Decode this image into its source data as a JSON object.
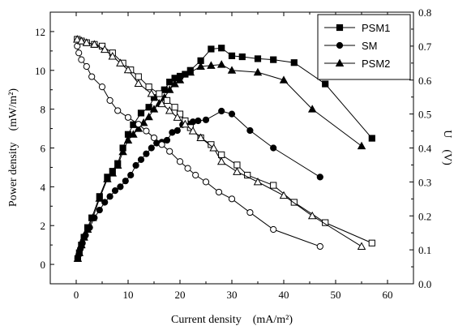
{
  "chart_data": {
    "type": "line",
    "xlabel": "Current density　(mA/m²)",
    "ylabel_left": "Power density　(mW/m²)",
    "ylabel_right": "U　(V)",
    "xlim": [
      -5,
      65
    ],
    "ylim_left": [
      -1,
      13
    ],
    "ylim_right": [
      0.0,
      0.8
    ],
    "x_ticks": [
      "0",
      "10",
      "20",
      "30",
      "40",
      "50",
      "60"
    ],
    "y_left_ticks": [
      "0",
      "2",
      "4",
      "6",
      "8",
      "10",
      "12"
    ],
    "y_right_ticks": [
      "0.0",
      "0.1",
      "0.2",
      "0.3",
      "0.4",
      "0.5",
      "0.6",
      "0.7",
      "0.8"
    ],
    "grid": false,
    "legend_position": "top-right",
    "series": [
      {
        "name": "PSM1",
        "marker": "square",
        "axis": "left",
        "x": [
          0.3,
          0.6,
          1.0,
          1.5,
          2.2,
          3.0,
          4.5,
          6.0,
          7.0,
          8.0,
          9.0,
          10.0,
          11.0,
          12.5,
          14.0,
          15.0,
          17.0,
          18.0,
          19.0,
          20.0,
          21.0,
          22.0,
          24.0,
          26.0,
          28.0,
          30.0,
          32.0,
          35.0,
          38.0,
          42.0,
          48.0,
          57.0
        ],
        "y": [
          0.3,
          0.6,
          1.0,
          1.4,
          1.9,
          2.4,
          3.5,
          4.5,
          4.8,
          5.2,
          6.0,
          6.7,
          7.2,
          7.8,
          8.1,
          8.6,
          9.0,
          9.4,
          9.6,
          9.7,
          9.8,
          10.0,
          10.5,
          11.1,
          11.15,
          10.75,
          10.7,
          10.6,
          10.55,
          10.4,
          9.3,
          6.5
        ]
      },
      {
        "name": "SM",
        "marker": "circle",
        "axis": "left",
        "x": [
          0.3,
          0.5,
          0.8,
          1.2,
          1.8,
          2.6,
          3.5,
          4.5,
          5.5,
          6.5,
          7.5,
          8.5,
          9.5,
          10.5,
          11.5,
          12.5,
          13.5,
          14.5,
          15.5,
          16.5,
          17.5,
          18.5,
          19.5,
          20.5,
          21.5,
          22.5,
          23.5,
          25.0,
          28.0,
          30.0,
          33.5,
          38.0,
          47.0
        ],
        "y": [
          0.3,
          0.5,
          0.8,
          1.1,
          1.5,
          1.9,
          2.4,
          2.8,
          3.2,
          3.5,
          3.8,
          4.0,
          4.3,
          4.6,
          5.1,
          5.4,
          5.7,
          6.0,
          6.25,
          6.3,
          6.4,
          6.8,
          6.9,
          7.2,
          7.25,
          7.35,
          7.4,
          7.45,
          7.9,
          7.75,
          6.9,
          6.0,
          4.5
        ]
      },
      {
        "name": "PSM2",
        "marker": "triangle",
        "axis": "left",
        "x": [
          0.3,
          0.6,
          1.0,
          1.5,
          2.2,
          3.2,
          4.5,
          6.0,
          7.0,
          8.0,
          9.0,
          10.0,
          11.0,
          12.0,
          13.0,
          14.0,
          15.0,
          16.0,
          17.0,
          18.0,
          19.0,
          20.0,
          22.0,
          24.0,
          26.0,
          28.0,
          30.0,
          35.0,
          40.0,
          45.5,
          55.0
        ],
        "y": [
          0.3,
          0.6,
          1.0,
          1.4,
          1.8,
          2.4,
          3.4,
          4.4,
          4.7,
          5.1,
          5.8,
          6.4,
          6.7,
          7.0,
          7.3,
          7.6,
          8.0,
          8.3,
          8.6,
          9.0,
          9.3,
          9.5,
          9.9,
          10.2,
          10.25,
          10.3,
          10.0,
          9.9,
          9.5,
          8.0,
          6.1
        ]
      },
      {
        "name": "",
        "marker": "open-square",
        "axis": "right",
        "x": [
          0.2,
          1.0,
          2.0,
          3.5,
          5.0,
          7.0,
          9.0,
          10.5,
          12.0,
          14.0,
          16.0,
          17.5,
          19.0,
          20.0,
          21.0,
          22.0,
          24.0,
          26.0,
          28.0,
          31.0,
          33.0,
          38.0,
          42.0,
          48.0,
          57.0
        ],
        "y": [
          0.72,
          0.715,
          0.71,
          0.705,
          0.7,
          0.68,
          0.65,
          0.63,
          0.61,
          0.58,
          0.56,
          0.54,
          0.52,
          0.5,
          0.48,
          0.46,
          0.43,
          0.41,
          0.38,
          0.35,
          0.32,
          0.29,
          0.24,
          0.18,
          0.12
        ]
      },
      {
        "name": "",
        "marker": "open-circle",
        "axis": "right",
        "x": [
          0.2,
          0.5,
          1.0,
          2.0,
          3.0,
          5.0,
          6.5,
          8.0,
          10.0,
          12.0,
          13.5,
          15.0,
          16.5,
          18.0,
          20.0,
          21.5,
          23.0,
          25.0,
          27.5,
          30.0,
          33.5,
          38.0,
          47.0
        ],
        "y": [
          0.7,
          0.68,
          0.66,
          0.64,
          0.61,
          0.58,
          0.54,
          0.51,
          0.49,
          0.47,
          0.45,
          0.43,
          0.41,
          0.39,
          0.36,
          0.34,
          0.32,
          0.3,
          0.27,
          0.25,
          0.21,
          0.16,
          0.11
        ]
      },
      {
        "name": "",
        "marker": "open-triangle",
        "axis": "right",
        "x": [
          0.2,
          1.0,
          2.0,
          3.5,
          5.5,
          7.0,
          8.5,
          10.0,
          12.0,
          14.5,
          16.5,
          18.0,
          19.5,
          21.0,
          22.5,
          24.0,
          26.5,
          28.0,
          31.0,
          35.0,
          40.0,
          45.5,
          55.0
        ],
        "y": [
          0.72,
          0.715,
          0.71,
          0.705,
          0.69,
          0.67,
          0.65,
          0.63,
          0.59,
          0.56,
          0.53,
          0.51,
          0.49,
          0.47,
          0.45,
          0.43,
          0.4,
          0.36,
          0.33,
          0.3,
          0.26,
          0.2,
          0.11
        ]
      }
    ]
  }
}
